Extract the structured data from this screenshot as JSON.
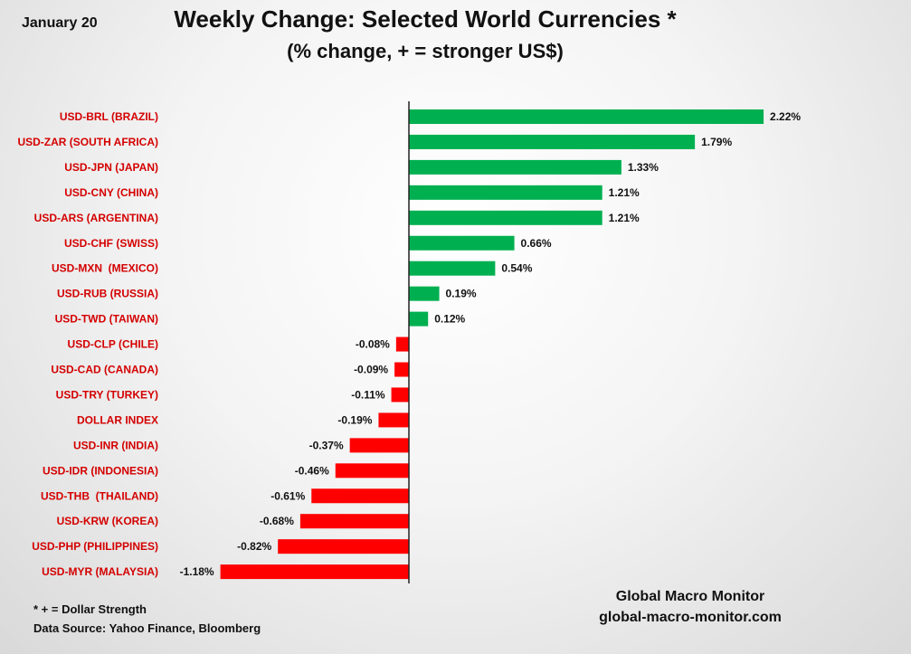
{
  "date": "January 20",
  "footnote": "* + = Dollar Strength",
  "source": "Data Source:  Yahoo Finance, Bloomberg",
  "brand_name": "Global Macro Monitor",
  "brand_url": "global-macro-monitor.com",
  "colors": {
    "positive": "#00b050",
    "negative": "#ff0000",
    "label": "#d40000",
    "axis": "#222222"
  },
  "chart_data": {
    "type": "bar",
    "orientation": "horizontal",
    "title": "Weekly Change: Selected World Currencies *",
    "subtitle": "(% change, + = stronger US$)",
    "xlabel": "",
    "ylabel": "",
    "categories": [
      "USD-BRL (BRAZIL)",
      "USD-ZAR (SOUTH AFRICA)",
      "USD-JPN (JAPAN)",
      "USD-CNY (CHINA)",
      "USD-ARS (ARGENTINA)",
      "USD-CHF (SWISS)",
      "USD-MXN  (MEXICO)",
      "USD-RUB (RUSSIA)",
      "USD-TWD (TAIWAN)",
      "USD-CLP (CHILE)",
      "USD-CAD (CANADA)",
      "USD-TRY (TURKEY)",
      "DOLLAR INDEX",
      "USD-INR (INDIA)",
      "USD-IDR (INDONESIA)",
      "USD-THB  (THAILAND)",
      "USD-KRW (KOREA)",
      "USD-PHP (PHILIPPINES)",
      "USD-MYR (MALAYSIA)"
    ],
    "values": [
      2.22,
      1.79,
      1.33,
      1.21,
      1.21,
      0.66,
      0.54,
      0.19,
      0.12,
      -0.08,
      -0.09,
      -0.11,
      -0.19,
      -0.37,
      -0.46,
      -0.61,
      -0.68,
      -0.82,
      -1.18
    ],
    "value_labels": [
      "2.22%",
      "1.79%",
      "1.33%",
      "1.21%",
      "1.21%",
      "0.66%",
      "0.54%",
      "0.19%",
      "0.12%",
      "-0.08%",
      "-0.09%",
      "-0.11%",
      "-0.19%",
      "-0.37%",
      "-0.46%",
      "-0.61%",
      "-0.68%",
      "-0.82%",
      "-1.18%"
    ],
    "xlim": [
      -1.18,
      2.22
    ],
    "grid": false,
    "legend": "none"
  }
}
